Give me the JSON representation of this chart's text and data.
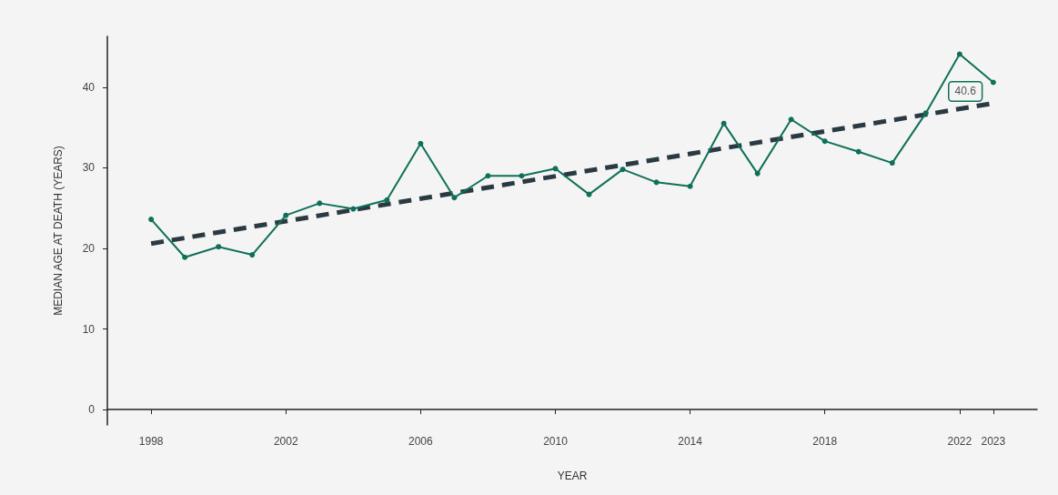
{
  "chart_data": {
    "type": "line",
    "xlabel": "YEAR",
    "ylabel": "MEDIAN AGE AT DEATH (YEARS)",
    "x": [
      1998,
      1999,
      2000,
      2001,
      2002,
      2003,
      2004,
      2005,
      2006,
      2007,
      2008,
      2009,
      2010,
      2011,
      2012,
      2013,
      2014,
      2015,
      2016,
      2017,
      2018,
      2019,
      2020,
      2021,
      2022,
      2023
    ],
    "series": [
      {
        "color": "#0e7058",
        "marker": "circle",
        "line_style": "solid",
        "values": [
          23.6,
          18.9,
          20.2,
          19.2,
          24.1,
          25.6,
          24.9,
          26.0,
          33.0,
          26.3,
          29.0,
          29.0,
          29.9,
          26.7,
          29.8,
          28.2,
          27.7,
          35.5,
          29.3,
          36.0,
          33.3,
          32.0,
          30.6,
          36.8,
          44.1,
          40.6
        ],
        "value_labels": [
          null,
          null,
          null,
          null,
          null,
          null,
          null,
          null,
          null,
          null,
          null,
          null,
          null,
          null,
          null,
          null,
          null,
          null,
          null,
          null,
          null,
          null,
          null,
          null,
          null,
          "40.6"
        ]
      },
      {
        "color": "#2b3a42",
        "marker": "none",
        "line_style": "dashed",
        "x": [
          1998,
          2023
        ],
        "values": [
          20.6,
          38.0
        ]
      }
    ],
    "xlim": [
      1996.7,
      2024.3
    ],
    "xticks": [
      1998,
      2002,
      2006,
      2010,
      2014,
      2018,
      2022,
      2023
    ],
    "ylim": [
      -1.9,
      46.3
    ],
    "yticks": [
      0,
      10,
      20,
      30,
      40
    ],
    "grid": false
  }
}
